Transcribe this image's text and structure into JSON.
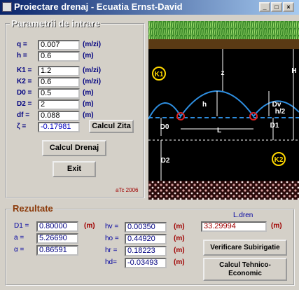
{
  "window": {
    "title": "Proiectare drenaj - Ecuatia Ernst-David",
    "controls": [
      "_",
      "□",
      "×"
    ]
  },
  "inputs": {
    "title": "Parametrii de intrare",
    "fields": [
      {
        "label": "q =",
        "value": "0.007",
        "unit": "(m/zi)"
      },
      {
        "label": "h =",
        "value": "0.6",
        "unit": "(m)"
      },
      {
        "label": "K1 =",
        "value": "1.2",
        "unit": "(m/zi)"
      },
      {
        "label": "K2 =",
        "value": "0.6",
        "unit": "(m/zi)"
      },
      {
        "label": "D0 =",
        "value": "0.5",
        "unit": "(m)"
      },
      {
        "label": "D2 =",
        "value": "2",
        "unit": "(m)"
      },
      {
        "label": "df =",
        "value": "0.088",
        "unit": "(m)"
      },
      {
        "label": "ζ =",
        "value": "-0.17981",
        "button": "Calcul Zita"
      }
    ]
  },
  "buttons": {
    "calcul_drenaj": "Calcul Drenaj",
    "exit": "Exit"
  },
  "credit": "aTc 2006",
  "diagram": {
    "labels": [
      "K1",
      "z",
      "H",
      "h",
      "Dv",
      "h/2",
      "D0",
      "L",
      "D1",
      "D2",
      "K2"
    ]
  },
  "results": {
    "title": "Rezultate",
    "left": [
      {
        "label": "D1 =",
        "value": "0.80000",
        "unit": "(m)"
      },
      {
        "label": "a =",
        "value": "5.26690"
      },
      {
        "label": "α =",
        "value": "0.86591"
      }
    ],
    "middle": [
      {
        "label": "hv =",
        "value": "0.00350",
        "unit": "(m)"
      },
      {
        "label": "ho =",
        "value": "0.44920",
        "unit": "(m)"
      },
      {
        "label": "hr =",
        "value": "0.18223",
        "unit": "(m)"
      },
      {
        "label": "hd=",
        "value": "-0.03493",
        "unit": "(m)"
      }
    ],
    "ldren": {
      "label": "L.dren",
      "value": "33.29994",
      "unit": "(m)"
    },
    "buttons": [
      "Verificare Subirigatie",
      "Calcul Tehnico-Economic"
    ]
  }
}
